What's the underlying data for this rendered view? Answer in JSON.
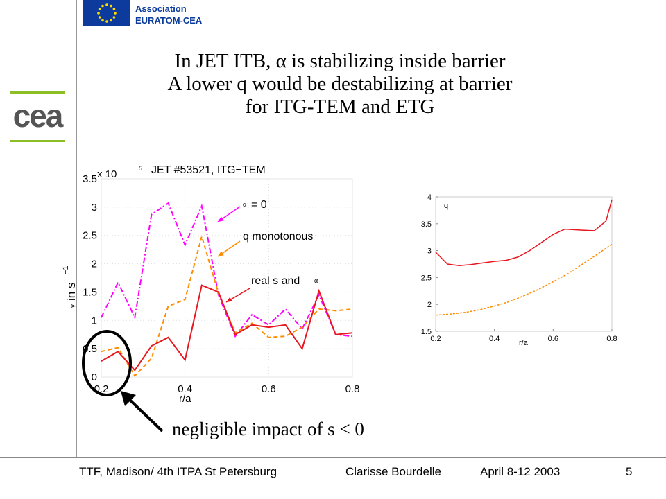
{
  "header": {
    "association_line1": "Association",
    "association_line2": "EURATOM-CEA",
    "logo_text": "cea"
  },
  "title": {
    "line1_pre": "In JET ITB, ",
    "line1_symbol": "α",
    "line1_post": " is stabilizing inside barrier",
    "line2": "A lower q would be destabilizing at barrier",
    "line3": "for ITG-TEM and ETG"
  },
  "colors": {
    "eu_blue": "#0c3a9d",
    "eu_star": "#ffdd00",
    "cea_green": "#8cbf26",
    "cea_gray": "#555555",
    "magenta": "#ff00ff",
    "orange": "#ff8c00",
    "red": "#e8161e"
  },
  "annotation": "negligible impact of s < 0",
  "footer": {
    "left": "TTF, Madison/ 4th ITPA St Petersburg",
    "middle": "Clarisse Bourdelle",
    "date": "April 8-12  2003",
    "page": "5"
  },
  "chart_data": [
    {
      "type": "line",
      "title": "JET #53521, ITG−TEM",
      "multiplier_label": "x 10",
      "multiplier_exp": "5",
      "xlabel": "r/a",
      "ylabel_symbol": "γ",
      "ylabel_text": "in s",
      "ylabel_exp": "−1",
      "xlim": [
        0.2,
        0.8
      ],
      "ylim": [
        0,
        3.5
      ],
      "xticks": [
        "0.2",
        "0.4",
        "0.6",
        "0.8"
      ],
      "yticks": [
        "0",
        "0.5",
        "1",
        "1.5",
        "2",
        "2.5",
        "3",
        "3.5"
      ],
      "grid": true,
      "labels": [
        {
          "text": "= 0",
          "symbol": "α"
        },
        {
          "text": "q monotonous"
        },
        {
          "text": "real s and",
          "symbol": "α"
        }
      ],
      "series": [
        {
          "color": "#ff00ff",
          "style": "dashdot",
          "x": [
            0.2,
            0.24,
            0.28,
            0.32,
            0.36,
            0.4,
            0.44,
            0.48,
            0.52,
            0.56,
            0.6,
            0.64,
            0.68,
            0.72,
            0.76,
            0.8
          ],
          "y": [
            1.05,
            1.67,
            1.05,
            2.87,
            3.07,
            2.33,
            3.02,
            1.45,
            0.72,
            1.1,
            0.92,
            1.2,
            0.85,
            1.45,
            0.75,
            0.72
          ]
        },
        {
          "color": "#ff8c00",
          "style": "dashed",
          "x": [
            0.2,
            0.24,
            0.28,
            0.32,
            0.36,
            0.4,
            0.44,
            0.48,
            0.52,
            0.56,
            0.6,
            0.64,
            0.68,
            0.72,
            0.76,
            0.8
          ],
          "y": [
            0.45,
            0.52,
            0.02,
            0.33,
            1.25,
            1.37,
            2.48,
            1.48,
            0.78,
            0.95,
            0.7,
            0.72,
            0.88,
            1.2,
            1.17,
            1.2
          ]
        },
        {
          "color": "#e8161e",
          "style": "solid",
          "x": [
            0.2,
            0.24,
            0.28,
            0.32,
            0.36,
            0.4,
            0.44,
            0.48,
            0.52,
            0.56,
            0.6,
            0.64,
            0.68,
            0.72,
            0.76,
            0.8
          ],
          "y": [
            0.28,
            0.45,
            0.12,
            0.55,
            0.7,
            0.3,
            1.62,
            1.5,
            0.75,
            0.92,
            0.88,
            0.92,
            0.5,
            1.52,
            0.75,
            0.78
          ]
        }
      ]
    },
    {
      "type": "line",
      "ylabel": "q",
      "xlabel": "r/a",
      "xlim": [
        0.2,
        0.8
      ],
      "ylim": [
        1.5,
        4
      ],
      "xticks": [
        "0.2",
        "0.4",
        "0.6",
        "0.8"
      ],
      "yticks": [
        "1.5",
        "2",
        "2.5",
        "3",
        "3.5",
        "4"
      ],
      "grid": false,
      "series": [
        {
          "color": "#e8161e",
          "style": "solid",
          "x": [
            0.2,
            0.24,
            0.28,
            0.32,
            0.36,
            0.4,
            0.44,
            0.48,
            0.52,
            0.56,
            0.6,
            0.64,
            0.7,
            0.74,
            0.78,
            0.8
          ],
          "y": [
            2.97,
            2.75,
            2.72,
            2.74,
            2.77,
            2.8,
            2.82,
            2.88,
            3.0,
            3.15,
            3.3,
            3.4,
            3.38,
            3.37,
            3.55,
            3.95
          ]
        },
        {
          "color": "#ff8c00",
          "style": "dashed",
          "x": [
            0.2,
            0.25,
            0.3,
            0.35,
            0.4,
            0.45,
            0.5,
            0.55,
            0.6,
            0.65,
            0.7,
            0.75,
            0.8
          ],
          "y": [
            1.8,
            1.82,
            1.85,
            1.9,
            1.97,
            2.05,
            2.16,
            2.28,
            2.42,
            2.57,
            2.75,
            2.93,
            3.12
          ]
        }
      ]
    }
  ]
}
